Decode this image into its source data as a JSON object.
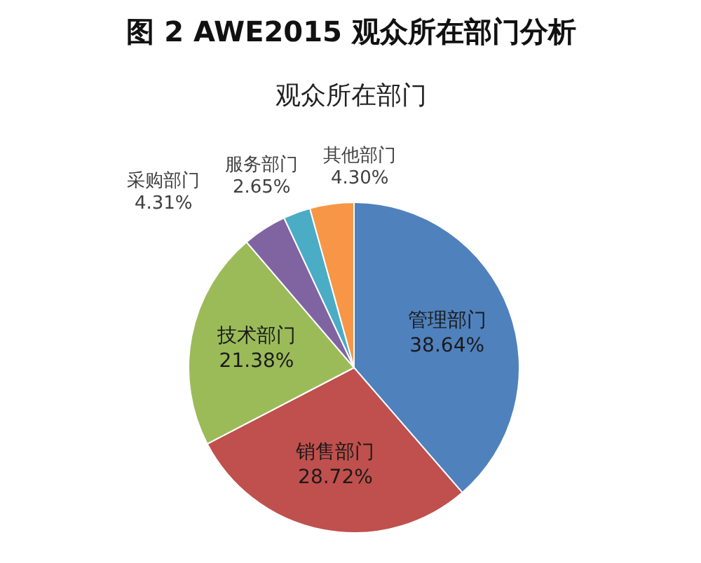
{
  "chart_data": {
    "type": "pie",
    "title": "图 2 AWE2015 观众所在部门分析",
    "subtitle": "观众所在部门",
    "categories": [
      "管理部门",
      "销售部门",
      "技术部门",
      "采购部门",
      "服务部门",
      "其他部门"
    ],
    "values": [
      38.64,
      28.72,
      21.38,
      4.31,
      2.65,
      4.3
    ],
    "colors": [
      "#4f81bd",
      "#c0504d",
      "#9bbb59",
      "#8064a2",
      "#4bacc6",
      "#f79646"
    ],
    "value_labels": [
      "38.64%",
      "28.72%",
      "21.38%",
      "4.31%",
      "2.65%",
      "4.30%"
    ]
  }
}
